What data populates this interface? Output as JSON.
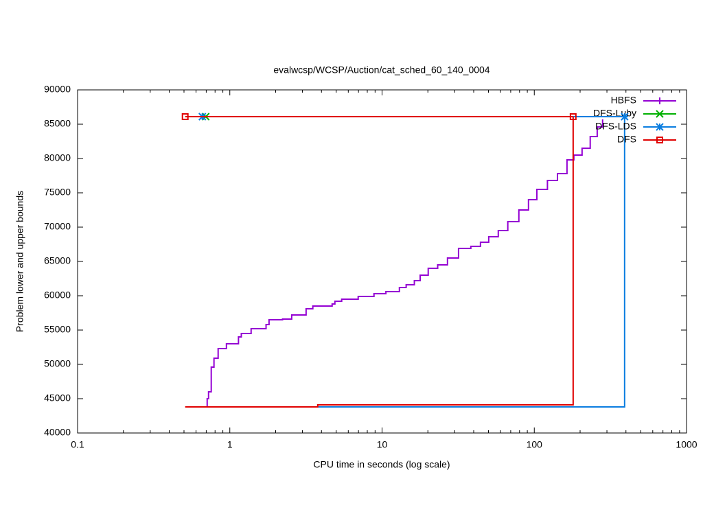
{
  "chart_data": {
    "type": "step",
    "title": "evalwcsp/WCSP/Auction/cat_sched_60_140_0004",
    "x_label": "CPU time in seconds (log scale)",
    "y_label": "Problem lower and upper bounds",
    "xscale": "log",
    "xlim": [
      0.1,
      1000
    ],
    "xticks": [
      0.1,
      1,
      10,
      100,
      1000
    ],
    "ylim": [
      40000,
      90000
    ],
    "yticks": [
      40000,
      45000,
      50000,
      55000,
      60000,
      65000,
      70000,
      75000,
      80000,
      85000,
      90000
    ],
    "legend": "top-right",
    "series": [
      {
        "name": "HBFS",
        "color": "#9400d3",
        "marker": "plus",
        "lower": {
          "x": [
            0.695,
            0.71,
            0.725,
            0.755,
            0.787,
            0.838,
            0.95,
            1.14,
            1.19,
            1.38,
            1.73,
            1.81,
            2.22,
            2.55,
            3.17,
            3.51,
            4.7,
            4.9,
            5.43,
            6.97,
            8.85,
            10.6,
            13.0,
            14.4,
            16.3,
            17.8,
            20.1,
            23.2,
            26.9,
            31.8,
            38.3,
            44.3,
            50.2,
            58.0,
            67.0,
            79.2,
            91.6,
            104,
            122,
            142,
            164,
            182,
            206,
            233,
            259,
            281
          ],
          "values": [
            43800,
            45000,
            46000,
            49600,
            50900,
            52300,
            53000,
            54000,
            54500,
            55200,
            55800,
            56500,
            56600,
            57200,
            58100,
            58500,
            58800,
            59200,
            59500,
            59900,
            60300,
            60600,
            61200,
            61600,
            62200,
            63000,
            64000,
            64500,
            65500,
            66900,
            67200,
            67800,
            68600,
            69500,
            70800,
            72500,
            74000,
            75500,
            76800,
            77800,
            79800,
            80500,
            81500,
            83200,
            84600,
            85700
          ]
        },
        "upper": {
          "x": [],
          "values": []
        }
      },
      {
        "name": "DFS-Luby",
        "color": "#00b000",
        "marker": "x",
        "lower": {
          "x": [],
          "values": []
        },
        "upper": {
          "x": [
            0.695
          ],
          "values": [
            86100
          ]
        }
      },
      {
        "name": "DFS-LDS",
        "color": "#0a7de0",
        "marker": "star",
        "lower": {
          "x": [
            3.78,
            392,
            392,
            392
          ],
          "values": [
            43800,
            43800,
            74000,
            86100
          ]
        },
        "upper": {
          "x": [
            0.66,
            392
          ],
          "values": [
            86100,
            86100
          ]
        }
      },
      {
        "name": "DFS",
        "color": "#e00000",
        "marker": "square",
        "lower": {
          "x": [
            0.509,
            3.78,
            180,
            180,
            180
          ],
          "values": [
            43800,
            44100,
            44100,
            48900,
            86100
          ]
        },
        "upper": {
          "x": [
            0.509,
            180
          ],
          "values": [
            86100,
            86100
          ]
        }
      }
    ]
  }
}
